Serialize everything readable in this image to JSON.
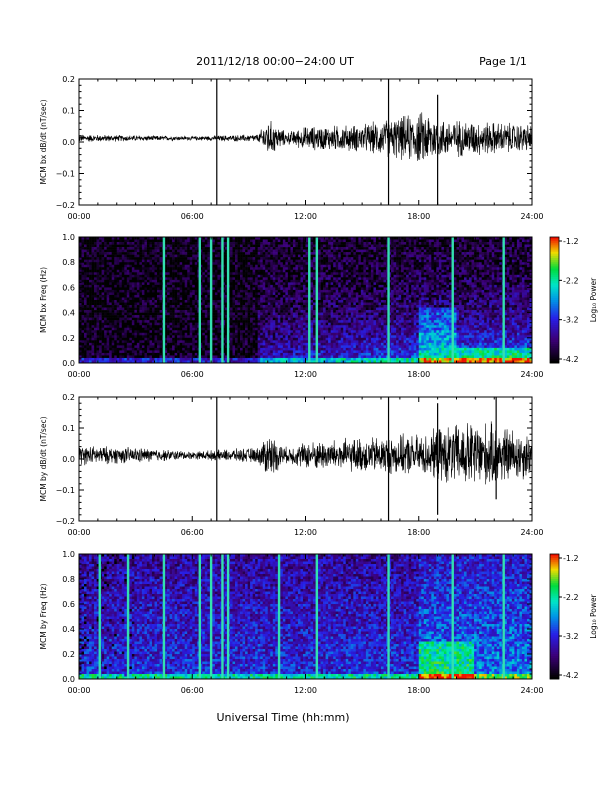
{
  "header": {
    "title": "2011/12/18   00:00−24:00 UT",
    "page": "Page 1/1"
  },
  "xlabel": "Universal Time (hh:mm)",
  "colors": {
    "axis": "#000000",
    "trace": "#000000",
    "background": "#ffffff"
  },
  "chart_data": [
    {
      "type": "line",
      "ylabel": "MCM bx dB/dt (nT/sec)",
      "xlim": [
        0,
        24
      ],
      "ylim": [
        -0.2,
        0.2
      ],
      "xticks": [
        "00:00",
        "06:00",
        "12:00",
        "18:00",
        "24:00"
      ],
      "yticks": [
        "0.2",
        "0.1",
        "0.0",
        "−0.1",
        "−0.2"
      ],
      "series": [
        {
          "noise_envelope": {
            "x": [
              0,
              6,
              9.5,
              10,
              11,
              12,
              15,
              18.5,
              19,
              21,
              24
            ],
            "amplitude": [
              0.01,
              0.005,
              0.01,
              0.05,
              0.015,
              0.03,
              0.035,
              0.07,
              0.05,
              0.045,
              0.035
            ]
          },
          "spikes": [
            {
              "x": 7.3,
              "min": -0.2,
              "max": 0.2
            },
            {
              "x": 16.4,
              "min": -0.2,
              "max": 0.2
            },
            {
              "x": 19.0,
              "min": -0.2,
              "max": 0.15
            }
          ]
        }
      ]
    },
    {
      "type": "heatmap",
      "ylabel": "MCM bx Freq (Hz)",
      "xlim": [
        0,
        24
      ],
      "ylim": [
        0,
        1
      ],
      "xticks": [
        "00:00",
        "06:00",
        "12:00",
        "18:00",
        "24:00"
      ],
      "yticks": [
        "1.0",
        "0.8",
        "0.6",
        "0.4",
        "0.2",
        "0.0"
      ],
      "colorbar": {
        "label": "Log₁₀ Power",
        "range": [
          -4.2,
          -1.2
        ],
        "ticks": [
          "-1.2",
          "-2.2",
          "-3.2",
          "-4.2"
        ]
      },
      "vertical_lines": [
        4.5,
        6.4,
        7.0,
        7.6,
        7.9,
        12.2,
        12.6,
        16.4,
        19.8,
        22.5
      ]
    },
    {
      "type": "line",
      "ylabel": "MCM by dB/dt (nT/sec)",
      "xlim": [
        0,
        24
      ],
      "ylim": [
        -0.2,
        0.2
      ],
      "xticks": [
        "00:00",
        "06:00",
        "12:00",
        "18:00",
        "24:00"
      ],
      "yticks": [
        "0.2",
        "0.1",
        "0.0",
        "−0.1",
        "−0.2"
      ],
      "series": [
        {
          "noise_envelope": {
            "x": [
              0,
              3,
              6,
              9.5,
              10,
              11,
              12,
              15,
              18.5,
              19,
              21,
              24
            ],
            "amplitude": [
              0.025,
              0.02,
              0.01,
              0.02,
              0.06,
              0.02,
              0.035,
              0.045,
              0.055,
              0.07,
              0.09,
              0.06
            ]
          },
          "spikes": [
            {
              "x": 7.3,
              "min": -0.2,
              "max": 0.2
            },
            {
              "x": 16.4,
              "min": -0.2,
              "max": 0.2
            },
            {
              "x": 19.0,
              "min": -0.18,
              "max": 0.18
            },
            {
              "x": 22.1,
              "min": -0.13,
              "max": 0.2
            }
          ]
        }
      ]
    },
    {
      "type": "heatmap",
      "ylabel": "MCM by Freq (Hz)",
      "xlim": [
        0,
        24
      ],
      "ylim": [
        0,
        1
      ],
      "xticks": [
        "00:00",
        "06:00",
        "12:00",
        "18:00",
        "24:00"
      ],
      "yticks": [
        "1.0",
        "0.8",
        "0.6",
        "0.4",
        "0.2",
        "0.0"
      ],
      "colorbar": {
        "label": "Log₁₀ Power",
        "range": [
          -4.2,
          -1.2
        ],
        "ticks": [
          "-1.2",
          "-2.2",
          "-3.2",
          "-4.2"
        ]
      },
      "vertical_lines": [
        1.1,
        2.6,
        4.5,
        6.4,
        7.0,
        7.6,
        7.9,
        10.6,
        12.6,
        16.4,
        19.8,
        22.5
      ]
    }
  ]
}
